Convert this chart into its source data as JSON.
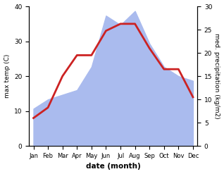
{
  "months": [
    "Jan",
    "Feb",
    "Mar",
    "Apr",
    "May",
    "Jun",
    "Jul",
    "Aug",
    "Sep",
    "Oct",
    "Nov",
    "Dec"
  ],
  "temp": [
    8,
    11,
    20,
    26,
    26,
    33,
    35,
    35,
    28,
    22,
    22,
    14
  ],
  "precip": [
    8,
    10,
    11,
    12,
    17,
    28,
    26,
    29,
    22,
    17,
    15,
    14
  ],
  "temp_color": "#cc2222",
  "precip_color": "#aabbee",
  "precip_fill_alpha": 1.0,
  "ylabel_left": "max temp (C)",
  "ylabel_right": "med. precipitation (kg/m2)",
  "xlabel": "date (month)",
  "ylim_left": [
    0,
    40
  ],
  "ylim_right": [
    0,
    30
  ],
  "yticks_left": [
    0,
    10,
    20,
    30,
    40
  ],
  "yticks_right": [
    0,
    5,
    10,
    15,
    20,
    25,
    30
  ],
  "bg_color": "#ffffff",
  "line_width": 2.0
}
